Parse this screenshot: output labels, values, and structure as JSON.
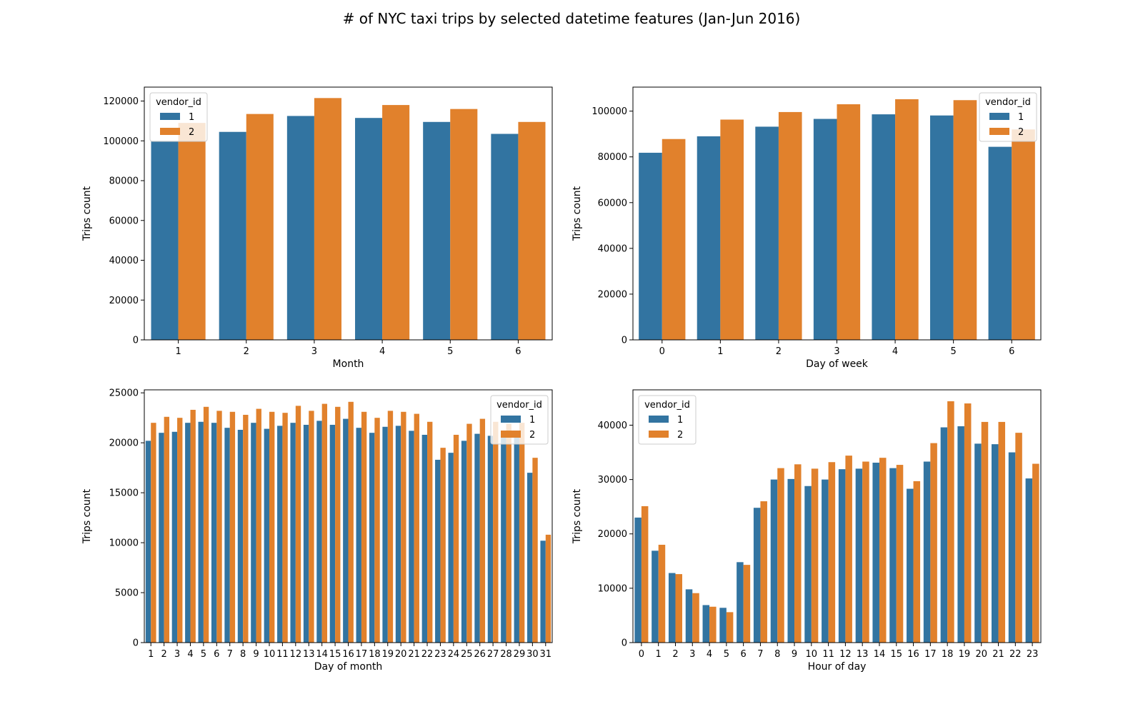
{
  "figure": {
    "title": "# of NYC taxi trips by selected datetime features (Jan-Jun 2016)"
  },
  "colors": {
    "vendor_1": "#3274a1",
    "vendor_2": "#e1812c"
  },
  "chart_data": [
    {
      "type": "bar",
      "xlabel": "Month",
      "ylabel": "Trips count",
      "ylim": [
        0,
        127000
      ],
      "yticks": [
        0,
        20000,
        40000,
        60000,
        80000,
        100000,
        120000
      ],
      "categories": [
        "1",
        "2",
        "3",
        "4",
        "5",
        "6"
      ],
      "legend": {
        "title": "vendor_id",
        "position": "upper-left"
      },
      "series": [
        {
          "name": "1",
          "values": [
            100000,
            104500,
            112500,
            111500,
            109500,
            103500
          ]
        },
        {
          "name": "2",
          "values": [
            109000,
            113500,
            121500,
            118000,
            116000,
            109500
          ]
        }
      ]
    },
    {
      "type": "bar",
      "xlabel": "Day of week",
      "ylabel": "Trips count",
      "ylim": [
        0,
        110500
      ],
      "yticks": [
        0,
        20000,
        40000,
        60000,
        80000,
        100000
      ],
      "categories": [
        "0",
        "1",
        "2",
        "3",
        "4",
        "5",
        "6"
      ],
      "legend": {
        "title": "vendor_id",
        "position": "upper-right"
      },
      "series": [
        {
          "name": "1",
          "values": [
            81800,
            89000,
            93200,
            96600,
            98600,
            98100,
            84400
          ]
        },
        {
          "name": "2",
          "values": [
            87800,
            96300,
            99600,
            103000,
            105200,
            104800,
            92000
          ]
        }
      ]
    },
    {
      "type": "bar",
      "xlabel": "Day of month",
      "ylabel": "Trips count",
      "ylim": [
        0,
        25300
      ],
      "yticks": [
        0,
        5000,
        10000,
        15000,
        20000,
        25000
      ],
      "categories": [
        "1",
        "2",
        "3",
        "4",
        "5",
        "6",
        "7",
        "8",
        "9",
        "10",
        "11",
        "12",
        "13",
        "14",
        "15",
        "16",
        "17",
        "18",
        "19",
        "20",
        "21",
        "22",
        "23",
        "24",
        "25",
        "26",
        "27",
        "28",
        "29",
        "30",
        "31"
      ],
      "legend": {
        "title": "vendor_id",
        "position": "upper-right"
      },
      "series": [
        {
          "name": "1",
          "values": [
            20200,
            21000,
            21100,
            22000,
            22100,
            22000,
            21500,
            21300,
            22000,
            21400,
            21700,
            22000,
            21800,
            22200,
            21800,
            22400,
            21500,
            21000,
            21600,
            21700,
            21200,
            20800,
            18300,
            19000,
            20200,
            20900,
            20700,
            20800,
            20900,
            17000,
            10200
          ]
        },
        {
          "name": "2",
          "values": [
            22000,
            22600,
            22500,
            23300,
            23600,
            23200,
            23100,
            22800,
            23400,
            23100,
            23000,
            23700,
            23200,
            23900,
            23600,
            24100,
            23100,
            22500,
            23200,
            23100,
            22900,
            22100,
            19500,
            20800,
            21900,
            22400,
            22100,
            21900,
            22000,
            18500,
            10800
          ]
        }
      ]
    },
    {
      "type": "bar",
      "xlabel": "Hour of day",
      "ylabel": "Trips count",
      "ylim": [
        0,
        46500
      ],
      "yticks": [
        0,
        10000,
        20000,
        30000,
        40000
      ],
      "categories": [
        "0",
        "1",
        "2",
        "3",
        "4",
        "5",
        "6",
        "7",
        "8",
        "9",
        "10",
        "11",
        "12",
        "13",
        "14",
        "15",
        "16",
        "17",
        "18",
        "19",
        "20",
        "21",
        "22",
        "23"
      ],
      "legend": {
        "title": "vendor_id",
        "position": "upper-left"
      },
      "series": [
        {
          "name": "1",
          "values": [
            23000,
            16900,
            12800,
            9800,
            6900,
            6400,
            14800,
            24800,
            30000,
            30100,
            28800,
            30000,
            31900,
            32000,
            33100,
            32100,
            28300,
            33300,
            39600,
            39800,
            36600,
            36500,
            35000,
            30200
          ]
        },
        {
          "name": "2",
          "values": [
            25100,
            18000,
            12600,
            9100,
            6600,
            5600,
            14300,
            26000,
            32100,
            32800,
            32000,
            33200,
            34400,
            33300,
            34000,
            32700,
            29700,
            36700,
            44400,
            44000,
            40600,
            40600,
            38600,
            32900
          ]
        }
      ]
    }
  ]
}
